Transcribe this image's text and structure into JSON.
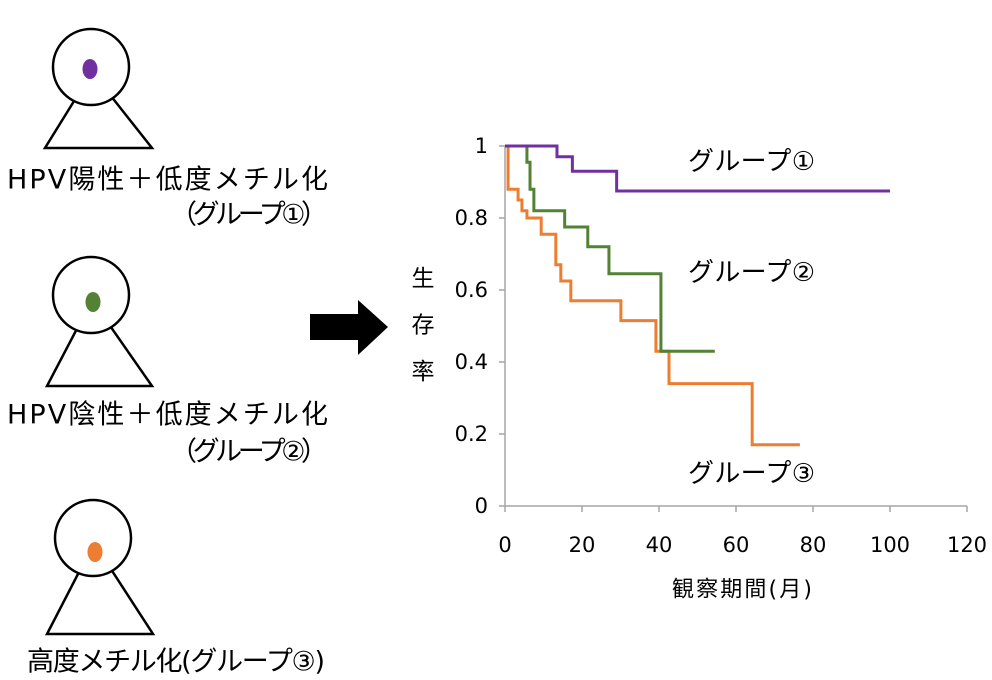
{
  "diagram": {
    "person_icon": "person-icon",
    "arrow_icon": "right-arrow-icon",
    "people": [
      {
        "label_line1": "HPV陽性＋低度メチル化",
        "label_line2": "（グループ①）",
        "dot_color": "#7030a0"
      },
      {
        "label_line1": "HPV陰性＋低度メチル化",
        "label_line2": "（グループ②）",
        "dot_color": "#548235"
      },
      {
        "label_line1": "高度メチル化(グループ③)",
        "dot_color": "#ed7d31"
      }
    ]
  },
  "chart_data": {
    "type": "line",
    "step": true,
    "xlabel": "観察期間(月)",
    "ylabel": "生存率",
    "xlim": [
      0,
      120
    ],
    "ylim": [
      0,
      1
    ],
    "xticks": [
      0,
      20,
      40,
      60,
      80,
      100,
      120
    ],
    "yticks": [
      0,
      0.2,
      0.4,
      0.6,
      0.8,
      1
    ],
    "grid": false,
    "legend": "inline",
    "series": [
      {
        "name": "グループ①",
        "color": "#7030a0",
        "x": [
          0,
          13.5,
          17.5,
          29,
          100
        ],
        "y": [
          1,
          0.97,
          0.93,
          0.875,
          0.875
        ]
      },
      {
        "name": "グループ②",
        "color": "#548235",
        "x": [
          0,
          5.7,
          6.5,
          7.5,
          15.5,
          21.5,
          27,
          40.5,
          54.5
        ],
        "y": [
          1,
          0.955,
          0.88,
          0.82,
          0.775,
          0.72,
          0.645,
          0.43,
          0.43
        ]
      },
      {
        "name": "グループ③",
        "color": "#ed7d31",
        "x": [
          0,
          0.8,
          3.4,
          4.4,
          5.7,
          9.4,
          13.2,
          14.5,
          17.1,
          30.1,
          39.2,
          42.6,
          64.2,
          76.6
        ],
        "y": [
          1,
          0.88,
          0.85,
          0.82,
          0.8,
          0.755,
          0.67,
          0.625,
          0.57,
          0.515,
          0.43,
          0.34,
          0.17,
          0.17
        ]
      }
    ]
  }
}
